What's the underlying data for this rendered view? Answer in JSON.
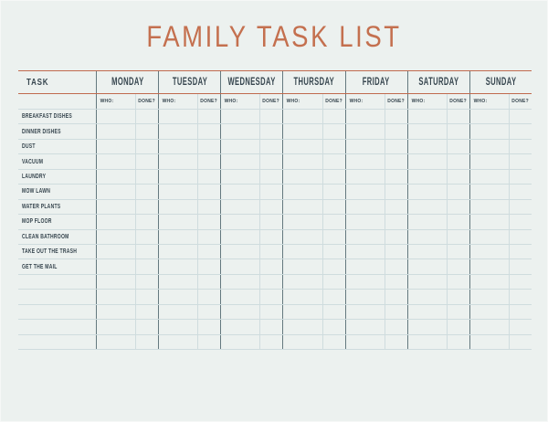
{
  "title": "FAMILY TASK LIST",
  "table": {
    "task_header": "TASK",
    "days": [
      "MONDAY",
      "TUESDAY",
      "WEDNESDAY",
      "THURSDAY",
      "FRIDAY",
      "SATURDAY",
      "SUNDAY"
    ],
    "who_label": "WHO:",
    "done_label": "DONE?",
    "tasks": [
      "BREAKFAST DISHES",
      "DINNER DISHES",
      "DUST",
      "VACUUM",
      "LAUNDRY",
      "MOW LAWN",
      "WATER PLANTS",
      "MOP FLOOR",
      "CLEAN BATHROOM",
      "TAKE OUT THE TRASH",
      "GET THE MAIL"
    ],
    "empty_rows": 5
  },
  "colors": {
    "background": "#ecf1ef",
    "accent_orange": "#c06a4e",
    "title_color": "#c4704f",
    "text_dark": "#36454e",
    "divider_teal": "#64797f",
    "grid_light": "#cfdcde"
  }
}
